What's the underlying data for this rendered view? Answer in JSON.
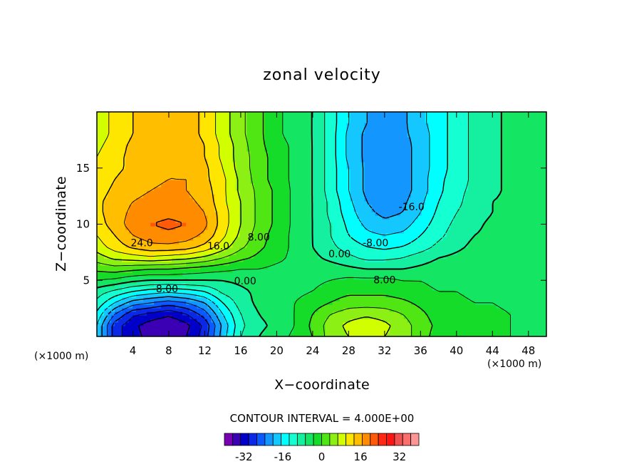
{
  "chart_data": {
    "type": "heatmap",
    "title": "zonal velocity",
    "xlabel": "X−coordinate",
    "ylabel": "Z−coordinate",
    "x_unit_left": "(×1000 m)",
    "x_unit_right": "(×1000 m)",
    "xlim": [
      0,
      50
    ],
    "ylim": [
      0,
      20
    ],
    "x_ticks": [
      4,
      8,
      12,
      16,
      20,
      24,
      28,
      32,
      36,
      40,
      44,
      48
    ],
    "y_ticks": [
      5,
      10,
      15
    ],
    "contour_interval_text": "CONTOUR INTERVAL = 4.000E+00",
    "contour_labels": [
      {
        "text": "24.0",
        "x": 5,
        "y": 8.3
      },
      {
        "text": "16.0",
        "x": 13.5,
        "y": 8.0
      },
      {
        "text": "8.00",
        "x": 18,
        "y": 8.8
      },
      {
        "text": "0.00",
        "x": 16.5,
        "y": 4.9
      },
      {
        "text": "-8.00",
        "x": 7.6,
        "y": 4.2
      },
      {
        "text": "0.00",
        "x": 27,
        "y": 7.3
      },
      {
        "text": "-8.00",
        "x": 31,
        "y": 8.3
      },
      {
        "text": "-16.0",
        "x": 35,
        "y": 11.5
      },
      {
        "text": "8.00",
        "x": 32,
        "y": 5.0
      }
    ],
    "field": {
      "x": [
        0,
        2,
        4,
        6,
        8,
        10,
        12,
        14,
        16,
        18,
        20,
        22,
        24,
        26,
        28,
        30,
        32,
        34,
        36,
        38,
        40,
        42,
        44,
        46,
        48,
        50
      ],
      "y": [
        0,
        1,
        2,
        3,
        4,
        5,
        6,
        7,
        8,
        9,
        10,
        11,
        12,
        13,
        14,
        15,
        16,
        17,
        18,
        19,
        20
      ],
      "values": [
        [
          -12,
          -26,
          -31,
          -33,
          -35,
          -32,
          -26,
          -14,
          -4,
          0,
          2,
          5,
          8,
          14,
          16,
          18,
          16,
          14,
          10,
          6,
          6,
          5,
          5,
          4,
          3,
          2
        ],
        [
          -12,
          -26,
          -31,
          -34,
          -36,
          -33,
          -27,
          -15,
          -5,
          -1,
          1,
          4,
          9,
          14,
          17,
          19,
          17,
          14,
          10,
          7,
          6,
          5,
          5,
          4,
          3,
          2
        ],
        [
          -9,
          -20,
          -27,
          -29,
          -31,
          -28,
          -22,
          -12,
          -4,
          0,
          2,
          4,
          8,
          12,
          14,
          15,
          14,
          12,
          9,
          6,
          6,
          5,
          5,
          4,
          3,
          2
        ],
        [
          -5,
          -12,
          -18,
          -20,
          -22,
          -20,
          -16,
          -8,
          -2,
          1,
          2,
          4,
          6,
          8,
          10,
          10,
          10,
          9,
          7,
          5,
          5,
          4,
          4,
          3,
          2,
          2
        ],
        [
          -2,
          -5,
          -8,
          -10,
          -11,
          -10,
          -8,
          -3,
          -1,
          1,
          2,
          3,
          4,
          6,
          7,
          7,
          7,
          6,
          5,
          4,
          4,
          3,
          3,
          2,
          2,
          1
        ],
        [
          4,
          3,
          1,
          0,
          0,
          0,
          0,
          0,
          1,
          2,
          3,
          3,
          3,
          4,
          5,
          5,
          5,
          4,
          4,
          3,
          3,
          3,
          2,
          2,
          2,
          1
        ],
        [
          9,
          10,
          9,
          8,
          8,
          7,
          6,
          5,
          4,
          4,
          3,
          3,
          2,
          2,
          1,
          0,
          0,
          0,
          1,
          2,
          2,
          3,
          3,
          2,
          2,
          2
        ],
        [
          14,
          17,
          18,
          19,
          18,
          17,
          15,
          12,
          9,
          7,
          5,
          3,
          1,
          -1,
          -3,
          -5,
          -5,
          -4,
          -2,
          0,
          1,
          2,
          2,
          2,
          2,
          2
        ],
        [
          18,
          22,
          25,
          27,
          27,
          26,
          23,
          18,
          13,
          9,
          6,
          3,
          0,
          -3,
          -6,
          -8,
          -9,
          -8,
          -6,
          -3,
          -1,
          1,
          2,
          2,
          2,
          2
        ],
        [
          20,
          24,
          28,
          30,
          31,
          30,
          27,
          21,
          15,
          10,
          6,
          3,
          0,
          -4,
          -8,
          -11,
          -12,
          -11,
          -8,
          -5,
          -2,
          0,
          1,
          2,
          2,
          2
        ],
        [
          22,
          26,
          30,
          32,
          33,
          32,
          29,
          22,
          16,
          11,
          7,
          3,
          0,
          -4,
          -9,
          -13,
          -15,
          -14,
          -10,
          -6,
          -3,
          -1,
          1,
          2,
          2,
          2
        ],
        [
          23,
          26,
          29,
          30,
          31,
          30,
          28,
          22,
          16,
          11,
          7,
          3,
          0,
          -5,
          -10,
          -15,
          -17,
          -16,
          -12,
          -7,
          -4,
          -2,
          0,
          1,
          2,
          2
        ],
        [
          23,
          26,
          28,
          29,
          30,
          29,
          27,
          21,
          16,
          11,
          7,
          3,
          0,
          -5,
          -11,
          -16,
          -18,
          -17,
          -13,
          -8,
          -5,
          -2,
          0,
          1,
          2,
          2
        ],
        [
          22,
          25,
          27,
          28,
          29,
          28,
          26,
          21,
          15,
          11,
          7,
          3,
          0,
          -6,
          -12,
          -17,
          -19,
          -18,
          -14,
          -9,
          -5,
          -3,
          -1,
          1,
          2,
          2
        ],
        [
          21,
          24,
          26,
          27,
          28,
          28,
          25,
          21,
          15,
          10,
          6,
          3,
          0,
          -6,
          -12,
          -17,
          -19,
          -18,
          -14,
          -9,
          -6,
          -3,
          -1,
          1,
          2,
          2
        ],
        [
          21,
          23,
          25,
          27,
          28,
          27,
          25,
          20,
          14,
          10,
          6,
          3,
          0,
          -6,
          -12,
          -17,
          -19,
          -18,
          -14,
          -10,
          -6,
          -3,
          -1,
          1,
          2,
          3
        ],
        [
          20,
          23,
          25,
          27,
          28,
          27,
          24,
          19,
          14,
          10,
          6,
          3,
          0,
          -6,
          -13,
          -17,
          -19,
          -18,
          -14,
          -10,
          -6,
          -3,
          -1,
          1,
          2,
          3
        ],
        [
          19,
          22,
          25,
          27,
          28,
          27,
          24,
          19,
          14,
          9,
          6,
          3,
          0,
          -6,
          -13,
          -17,
          -19,
          -18,
          -14,
          -10,
          -6,
          -3,
          -1,
          1,
          3,
          3
        ],
        [
          18,
          21,
          24,
          26,
          27,
          26,
          23,
          18,
          13,
          9,
          5,
          2,
          0,
          -6,
          -13,
          -17,
          -18,
          -17,
          -14,
          -10,
          -6,
          -3,
          -1,
          1,
          3,
          3
        ],
        [
          18,
          21,
          24,
          26,
          27,
          26,
          23,
          18,
          13,
          9,
          5,
          2,
          0,
          -6,
          -12,
          -16,
          -18,
          -17,
          -13,
          -10,
          -6,
          -3,
          -1,
          1,
          3,
          3
        ],
        [
          18,
          21,
          24,
          26,
          27,
          26,
          23,
          18,
          13,
          9,
          5,
          2,
          0,
          -6,
          -12,
          -16,
          -18,
          -17,
          -13,
          -10,
          -6,
          -3,
          -1,
          1,
          3,
          3
        ]
      ]
    },
    "colorbar": {
      "min": -40,
      "max": 40,
      "step": 4,
      "tick_labels": [
        "-32",
        "-16",
        "0",
        "16",
        "32"
      ],
      "tick_values": [
        -32,
        -16,
        0,
        16,
        32
      ],
      "colors": [
        "#7a00b4",
        "#3c00b4",
        "#0000c8",
        "#0a28e6",
        "#0a5aff",
        "#1496ff",
        "#14c8ff",
        "#00ffff",
        "#14ffd2",
        "#14f0a0",
        "#14e664",
        "#14dc28",
        "#50e614",
        "#8cf014",
        "#d2ff00",
        "#ffe600",
        "#ffbe00",
        "#ff8c00",
        "#ff5a0a",
        "#ff2814",
        "#ff1414",
        "#f05050",
        "#fa6e6e",
        "#ff9696"
      ]
    }
  }
}
